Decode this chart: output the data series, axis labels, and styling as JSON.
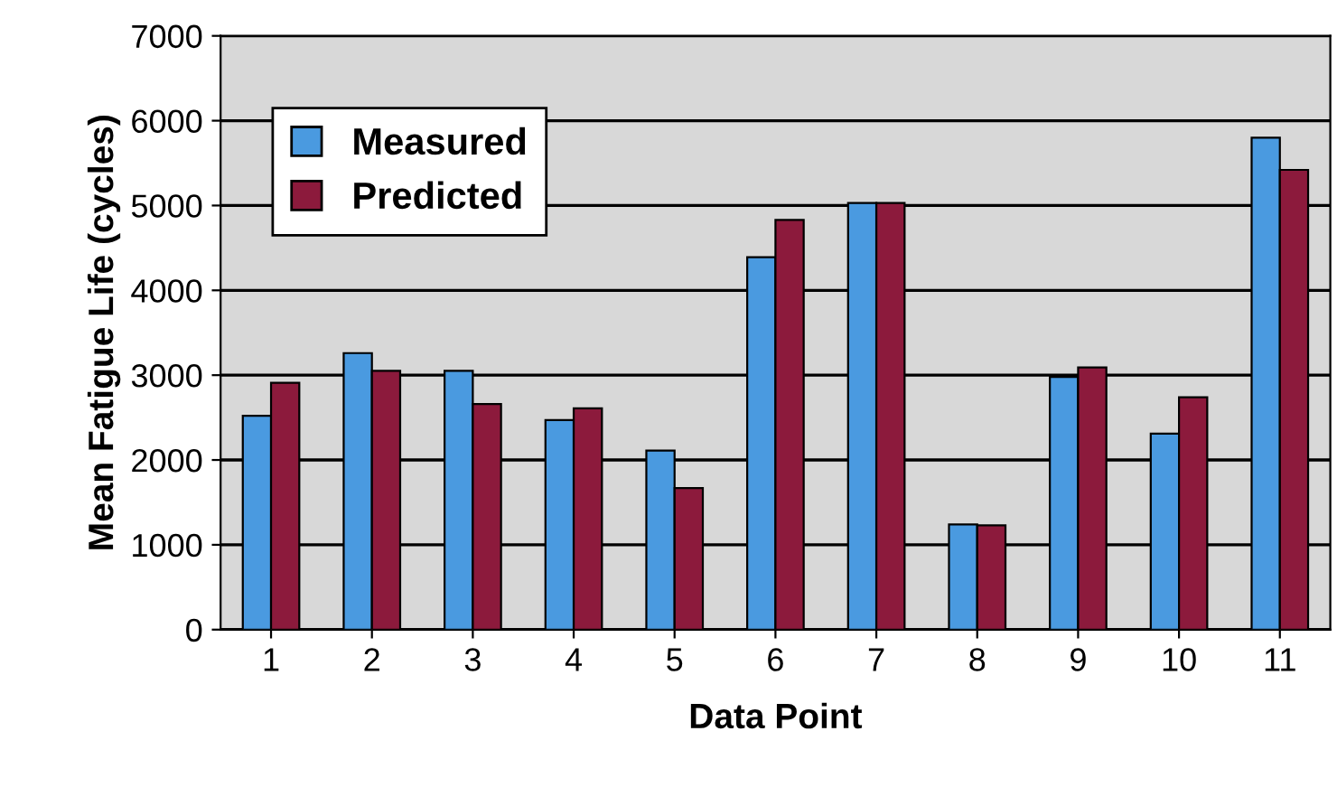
{
  "chart_data": {
    "type": "bar",
    "xlabel": "Data Point",
    "ylabel": "Mean Fatigue Life (cycles)",
    "categories": [
      "1",
      "2",
      "3",
      "4",
      "5",
      "6",
      "7",
      "8",
      "9",
      "10",
      "11"
    ],
    "series": [
      {
        "name": "Measured",
        "color": "#4a9ae0",
        "values": [
          2520,
          3260,
          3050,
          2470,
          2110,
          4390,
          5030,
          1240,
          2980,
          2310,
          5800
        ]
      },
      {
        "name": "Predicted",
        "color": "#8c1a3c",
        "values": [
          2910,
          3050,
          2660,
          2610,
          1670,
          4830,
          5030,
          1230,
          3090,
          2740,
          5420
        ]
      }
    ],
    "ylim": [
      0,
      7000
    ],
    "yticks": [
      0,
      1000,
      2000,
      3000,
      4000,
      5000,
      6000,
      7000
    ],
    "grid": "y",
    "legend": "top left"
  }
}
